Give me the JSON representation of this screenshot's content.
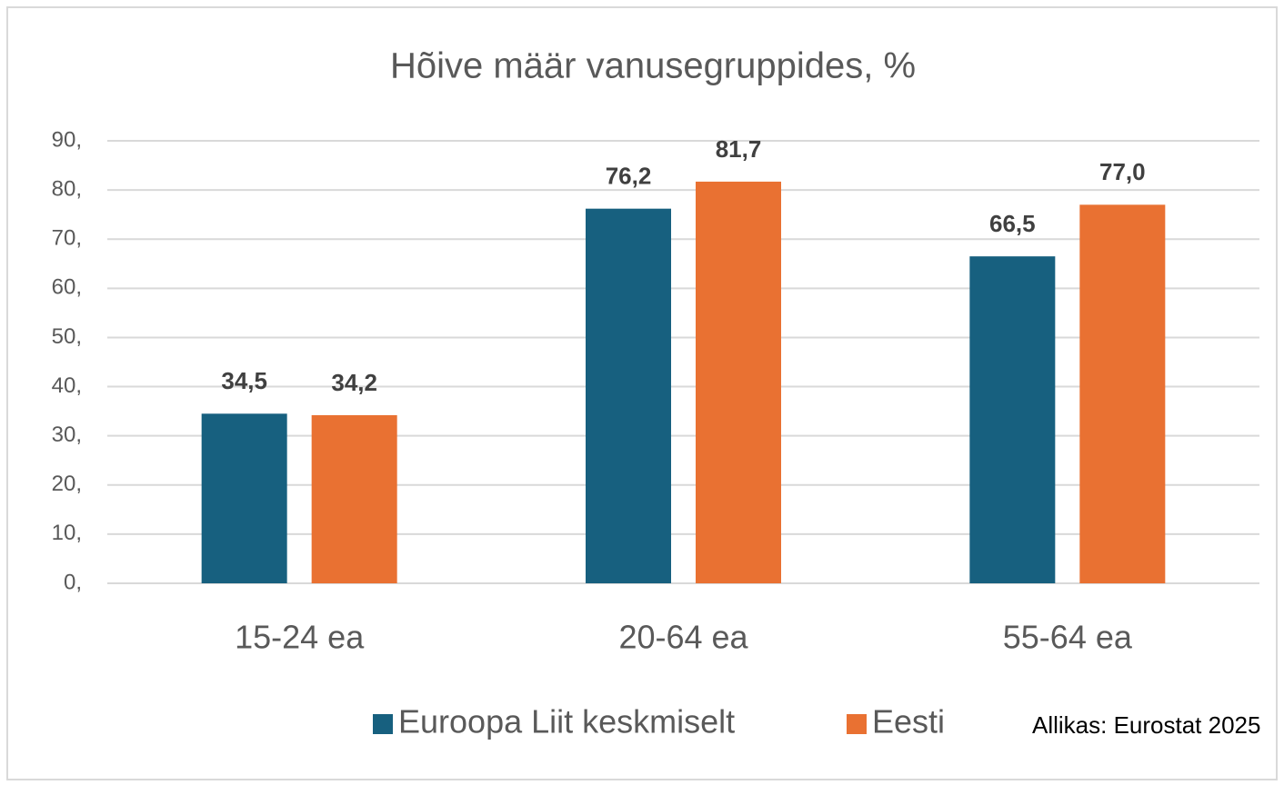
{
  "chart_data": {
    "type": "bar",
    "title": "Hõive määr vanusegruppides, %",
    "categories": [
      "15-24 ea",
      "20-64 ea",
      "55-64 ea"
    ],
    "series": [
      {
        "name": "Euroopa Liit keskmiselt",
        "color": "#17607f",
        "values": [
          34.5,
          76.2,
          66.5
        ],
        "value_labels": [
          "34,5",
          "76,2",
          "66,5"
        ]
      },
      {
        "name": "Eesti",
        "color": "#e97132",
        "values": [
          34.2,
          81.7,
          77.0
        ],
        "value_labels": [
          "34,2",
          "81,7",
          "77,0"
        ]
      }
    ],
    "ylim": [
      0,
      90
    ],
    "yticks": [
      {
        "value": 0,
        "label": "0,"
      },
      {
        "value": 10,
        "label": "10,"
      },
      {
        "value": 20,
        "label": "20,"
      },
      {
        "value": 30,
        "label": "30,"
      },
      {
        "value": 40,
        "label": "40,"
      },
      {
        "value": 50,
        "label": "50,"
      },
      {
        "value": 60,
        "label": "60,"
      },
      {
        "value": 70,
        "label": "70,"
      },
      {
        "value": 80,
        "label": "80,"
      },
      {
        "value": 90,
        "label": "90,"
      }
    ],
    "grid": true,
    "legend": "bottom",
    "annotation": "Allikas: Eurostat 2025"
  }
}
